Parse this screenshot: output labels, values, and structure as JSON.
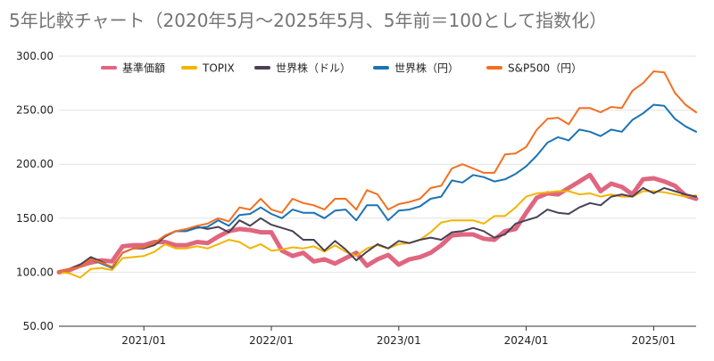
{
  "chart_data": {
    "type": "line",
    "title": "5年比較チャート（2020年5月〜2025年5月、5年前＝100として指数化）",
    "xlabel": "",
    "ylabel": "",
    "ylim": [
      50,
      300
    ],
    "yticks": [
      "50.00",
      "100.00",
      "150.00",
      "200.00",
      "250.00",
      "300.00"
    ],
    "xticks": [
      "2021/01",
      "2022/01",
      "2023/01",
      "2024/01",
      "2025/01"
    ],
    "grid": true,
    "legend_position": "top",
    "x": [
      "2020/05",
      "2020/06",
      "2020/07",
      "2020/08",
      "2020/09",
      "2020/10",
      "2020/11",
      "2020/12",
      "2021/01",
      "2021/02",
      "2021/03",
      "2021/04",
      "2021/05",
      "2021/06",
      "2021/07",
      "2021/08",
      "2021/09",
      "2021/10",
      "2021/11",
      "2021/12",
      "2022/01",
      "2022/02",
      "2022/03",
      "2022/04",
      "2022/05",
      "2022/06",
      "2022/07",
      "2022/08",
      "2022/09",
      "2022/10",
      "2022/11",
      "2022/12",
      "2023/01",
      "2023/02",
      "2023/03",
      "2023/04",
      "2023/05",
      "2023/06",
      "2023/07",
      "2023/08",
      "2023/09",
      "2023/10",
      "2023/11",
      "2023/12",
      "2024/01",
      "2024/02",
      "2024/03",
      "2024/04",
      "2024/05",
      "2024/06",
      "2024/07",
      "2024/08",
      "2024/09",
      "2024/10",
      "2024/11",
      "2024/12",
      "2025/01",
      "2025/02",
      "2025/03",
      "2025/04",
      "2025/05"
    ],
    "series": [
      {
        "name": "基準価額",
        "color": "#e06680",
        "width": 5,
        "values": [
          100,
          102,
          106,
          109,
          111,
          110,
          124,
          125,
          125,
          128,
          128,
          125,
          125,
          128,
          127,
          133,
          138,
          140,
          139,
          137,
          137,
          120,
          115,
          118,
          110,
          112,
          108,
          113,
          118,
          106,
          112,
          116,
          107,
          112,
          114,
          118,
          125,
          134,
          135,
          135,
          131,
          130,
          138,
          140,
          155,
          169,
          173,
          172,
          178,
          184,
          190,
          175,
          182,
          179,
          172,
          186,
          187,
          184,
          180,
          171,
          168
        ]
      },
      {
        "name": "TOPIX",
        "color": "#f4b400",
        "width": 2,
        "values": [
          100,
          99,
          95,
          103,
          104,
          102,
          113,
          114,
          115,
          119,
          126,
          122,
          122,
          124,
          122,
          126,
          130,
          128,
          122,
          126,
          120,
          121,
          123,
          122,
          124,
          119,
          125,
          119,
          115,
          122,
          125,
          122,
          126,
          127,
          130,
          137,
          146,
          148,
          148,
          148,
          145,
          152,
          152,
          160,
          170,
          173,
          174,
          175,
          175,
          172,
          173,
          170,
          172,
          170,
          170,
          175,
          175,
          174,
          172,
          170,
          171
        ]
      },
      {
        "name": "世界株（ドル）",
        "color": "#4a4155",
        "width": 2,
        "values": [
          100,
          103,
          107,
          114,
          110,
          104,
          118,
          122,
          122,
          125,
          133,
          138,
          138,
          142,
          140,
          142,
          137,
          148,
          143,
          150,
          144,
          141,
          138,
          130,
          130,
          120,
          129,
          121,
          111,
          119,
          126,
          122,
          129,
          127,
          130,
          132,
          130,
          137,
          138,
          141,
          138,
          132,
          135,
          145,
          148,
          151,
          158,
          155,
          154,
          160,
          164,
          162,
          170,
          172,
          170,
          178,
          173,
          178,
          175,
          172,
          170
        ]
      },
      {
        "name": "世界株（円）",
        "color": "#1c73b4",
        "width": 2,
        "values": [
          100,
          103,
          105,
          112,
          108,
          104,
          118,
          122,
          123,
          127,
          134,
          138,
          138,
          141,
          142,
          148,
          143,
          153,
          154,
          160,
          154,
          150,
          158,
          155,
          155,
          150,
          157,
          158,
          148,
          162,
          162,
          148,
          157,
          158,
          161,
          168,
          170,
          185,
          183,
          190,
          188,
          184,
          186,
          191,
          198,
          208,
          220,
          225,
          222,
          232,
          230,
          226,
          232,
          230,
          241,
          247,
          255,
          254,
          242,
          235,
          230
        ]
      },
      {
        "name": "S&P500（円）",
        "color": "#f37021",
        "width": 2,
        "values": [
          100,
          103,
          105,
          112,
          109,
          105,
          118,
          122,
          123,
          127,
          134,
          138,
          140,
          143,
          145,
          150,
          147,
          160,
          158,
          168,
          158,
          155,
          168,
          164,
          162,
          158,
          168,
          168,
          158,
          176,
          172,
          158,
          163,
          165,
          168,
          178,
          180,
          196,
          200,
          196,
          192,
          192,
          209,
          210,
          216,
          232,
          242,
          243,
          237,
          252,
          252,
          248,
          253,
          252,
          268,
          275,
          286,
          285,
          266,
          255,
          248
        ]
      }
    ]
  }
}
